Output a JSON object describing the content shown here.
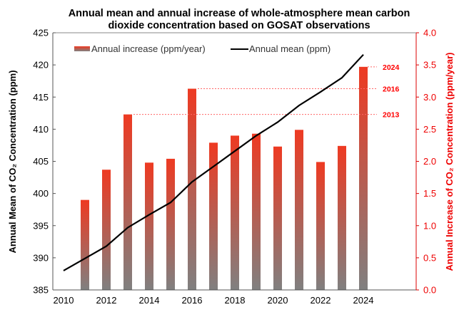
{
  "chart_data": {
    "type": "bar",
    "title": [
      "Annual mean and annual increase of whole-atmosphere mean carbon",
      "dioxide concentration based on GOSAT observations"
    ],
    "x_ticks": [
      "2010",
      "2012",
      "2014",
      "2016",
      "2018",
      "2020",
      "2022",
      "2024"
    ],
    "ylabel_left": "Annual Mean of CO₂ Concentration (ppm)",
    "ylabel_right": "Annual Increase of CO₂ Concentration (ppm/year)",
    "ylim_left": [
      385,
      425
    ],
    "ylim_right": [
      0,
      4.0
    ],
    "y_ticks_left": [
      "385",
      "390",
      "395",
      "400",
      "405",
      "410",
      "415",
      "420",
      "425"
    ],
    "y_ticks_right": [
      "0.0",
      "0.5",
      "1.0",
      "1.5",
      "2.0",
      "2.5",
      "3.0",
      "3.5",
      "4.0"
    ],
    "legend_position": "top",
    "series": [
      {
        "name": "Annual increase (ppm/year)",
        "type": "bar",
        "axis": "right",
        "color_top": "#ee3a22",
        "color_bottom": "#808080",
        "x": [
          2011,
          2012,
          2013,
          2014,
          2015,
          2016,
          2017,
          2018,
          2019,
          2020,
          2021,
          2022,
          2023,
          2024
        ],
        "values": [
          1.4,
          1.87,
          2.73,
          1.98,
          2.04,
          3.13,
          2.29,
          2.4,
          2.43,
          2.23,
          2.49,
          1.99,
          2.24,
          3.47
        ]
      },
      {
        "name": "Annual mean (ppm)",
        "type": "line",
        "axis": "left",
        "color": "#000000",
        "x": [
          2010,
          2011,
          2012,
          2013,
          2014,
          2015,
          2016,
          2017,
          2018,
          2019,
          2020,
          2021,
          2022,
          2023,
          2024
        ],
        "values": [
          388.0,
          389.9,
          391.8,
          394.7,
          396.7,
          398.6,
          401.8,
          404.2,
          406.6,
          409.0,
          411.1,
          413.7,
          415.8,
          418.0,
          421.6
        ]
      }
    ],
    "annotations": [
      {
        "label": "2024",
        "value": 3.47,
        "color": "#ff0000"
      },
      {
        "label": "2016",
        "value": 3.13,
        "color": "#ff0000"
      },
      {
        "label": "2013",
        "value": 2.73,
        "color": "#ff0000"
      }
    ],
    "grid": false
  }
}
